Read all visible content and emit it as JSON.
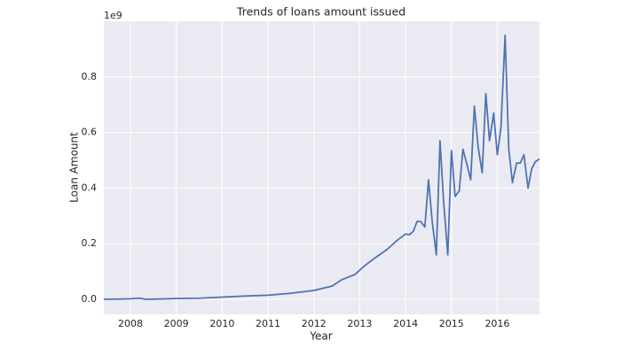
{
  "chart_data": {
    "type": "line",
    "title": "Trends of loans amount issued",
    "x_label": "Year",
    "y_label": "Loan Amount",
    "y_offset_label": "1e9",
    "x": [
      2007.42,
      2008.0,
      2008.2,
      2008.35,
      2009.0,
      2009.5,
      2010.0,
      2010.5,
      2011.0,
      2011.5,
      2012.0,
      2012.4,
      2012.6,
      2012.9,
      2013.1,
      2013.3,
      2013.6,
      2013.8,
      2014.0,
      2014.08,
      2014.17,
      2014.25,
      2014.33,
      2014.42,
      2014.5,
      2014.58,
      2014.67,
      2014.75,
      2014.83,
      2014.92,
      2015.0,
      2015.08,
      2015.17,
      2015.25,
      2015.33,
      2015.42,
      2015.5,
      2015.58,
      2015.67,
      2015.75,
      2015.83,
      2015.92,
      2016.0,
      2016.08,
      2016.17,
      2016.25,
      2016.33,
      2016.42,
      2016.5,
      2016.58,
      2016.67,
      2016.75,
      2016.83,
      2016.92
    ],
    "series": [
      {
        "name": "Loan Amount",
        "color": "#4c72b0",
        "values": [
          0.0,
          0.002,
          0.004,
          0.0,
          0.003,
          0.004,
          0.008,
          0.012,
          0.015,
          0.022,
          0.032,
          0.048,
          0.07,
          0.09,
          0.12,
          0.145,
          0.18,
          0.21,
          0.235,
          0.232,
          0.245,
          0.28,
          0.28,
          0.26,
          0.43,
          0.28,
          0.16,
          0.57,
          0.35,
          0.16,
          0.535,
          0.37,
          0.39,
          0.54,
          0.49,
          0.43,
          0.695,
          0.55,
          0.455,
          0.74,
          0.57,
          0.67,
          0.52,
          0.62,
          0.95,
          0.54,
          0.42,
          0.49,
          0.49,
          0.52,
          0.4,
          0.47,
          0.495,
          0.505
        ]
      }
    ],
    "xlim": [
      2007.42,
      2016.92
    ],
    "ylim": [
      -0.054,
      1.0
    ],
    "xticks": [
      2008,
      2009,
      2010,
      2011,
      2012,
      2013,
      2014,
      2015,
      2016
    ],
    "yticks": [
      {
        "value": 0,
        "label": "0.0"
      },
      0.2,
      0.4,
      0.6,
      0.8
    ],
    "grid": true,
    "background": "#eaeaf2"
  }
}
